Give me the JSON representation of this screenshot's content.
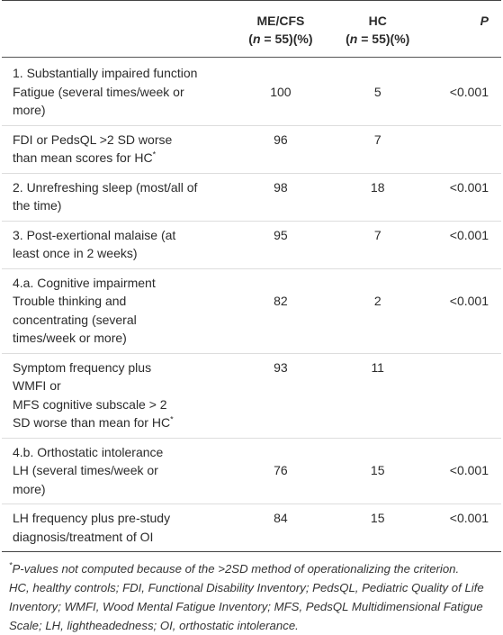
{
  "table": {
    "header": [
      {
        "title": "ME/CFS",
        "n": "n",
        "rest": " = 55)(%)"
      },
      {
        "title": "HC",
        "n": "n",
        "rest": " = 55)(%)"
      },
      {
        "title": "P"
      }
    ],
    "rows": [
      {
        "heading": "1. Substantially impaired function",
        "lines": [
          "Fatigue (several times/week or",
          "more)"
        ],
        "values": [
          100,
          5,
          "<0.001"
        ]
      },
      {
        "lines": [
          "FDI or PedsQL >2 SD worse",
          "than mean scores for HC"
        ],
        "mark": "*",
        "values": [
          96,
          7,
          null
        ]
      },
      {
        "lines": [
          "2. Unrefreshing sleep (most/all of",
          "the time)"
        ],
        "values": [
          98,
          18,
          "<0.001"
        ]
      },
      {
        "lines": [
          "3. Post-exertional malaise (at",
          "least once in 2 weeks)"
        ],
        "values": [
          95,
          7,
          "<0.001"
        ]
      },
      {
        "heading": "4.a. Cognitive impairment",
        "lines": [
          "Trouble thinking and",
          "concentrating (several",
          "times/week or more)"
        ],
        "values": [
          82,
          2,
          "<0.001"
        ]
      },
      {
        "lines": [
          "Symptom frequency plus",
          "WMFI or",
          "MFS cognitive subscale > 2",
          "SD worse than mean for HC"
        ],
        "mark": "*",
        "values": [
          93,
          11,
          null
        ]
      },
      {
        "heading": "4.b. Orthostatic intolerance",
        "lines": [
          "LH (several times/week or",
          "more)"
        ],
        "values": [
          76,
          15,
          "<0.001"
        ]
      },
      {
        "lines": [
          "LH frequency plus pre-study",
          "diagnosis/treatment of OI"
        ],
        "values": [
          84,
          15,
          "<0.001"
        ]
      }
    ],
    "footnote": {
      "mark": "*",
      "lines": [
        "P-values not computed because of the >2SD method of operationalizing the criterion.",
        "HC, healthy controls; FDI, Functional Disability Inventory; PedsQL, Pediatric Quality of Life",
        "Inventory; WMFI, Wood Mental Fatigue Inventory; MFS, PedsQL Multidimensional Fatigue",
        "Scale; LH, lightheadedness; OI, orthostatic intolerance."
      ]
    }
  }
}
